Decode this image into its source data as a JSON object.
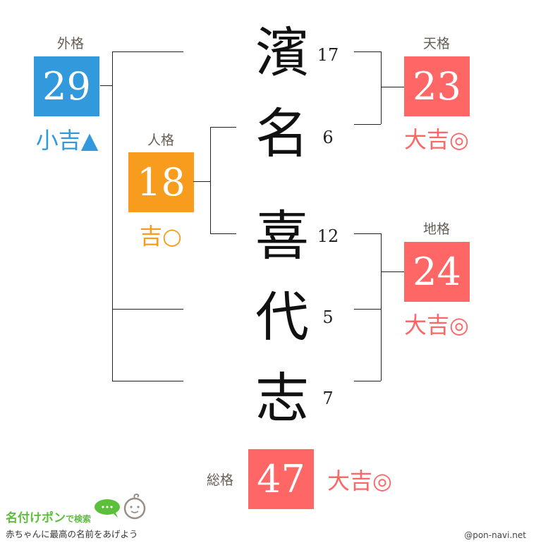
{
  "name_chars": [
    {
      "char": "濱",
      "strokes": "17"
    },
    {
      "char": "名",
      "strokes": "6"
    },
    {
      "char": "喜",
      "strokes": "12"
    },
    {
      "char": "代",
      "strokes": "5"
    },
    {
      "char": "志",
      "strokes": "7"
    }
  ],
  "gaikaku": {
    "label": "外格",
    "value": "29",
    "fortune": "小吉▲",
    "color": "#3399dd"
  },
  "jinkaku": {
    "label": "人格",
    "value": "18",
    "fortune": "吉○",
    "color": "#f79c1d"
  },
  "tenkaku": {
    "label": "天格",
    "value": "23",
    "fortune": "大吉◎",
    "color": "#ff6666"
  },
  "chikaku": {
    "label": "地格",
    "value": "24",
    "fortune": "大吉◎",
    "color": "#ff6666"
  },
  "sokaku": {
    "label": "総格",
    "value": "47",
    "fortune": "大吉◎",
    "color": "#ff6666"
  },
  "logo": {
    "title": "名付けポン",
    "suffix": "で検索",
    "tagline": "赤ちゃんに最高の名前をあげよう"
  },
  "credit": "@pon-navi.net"
}
